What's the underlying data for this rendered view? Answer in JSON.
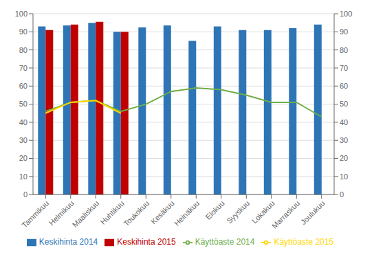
{
  "chart_data": {
    "type": "bar",
    "categories": [
      "Tammikuu",
      "Helmikuu",
      "Maaliskuu",
      "Huhtikuu",
      "Toukokuu",
      "Kesäkuu",
      "Heinäkuu",
      "Elokuu",
      "Syyskuu",
      "Lokakuu",
      "Marraskuu",
      "Joulukuu"
    ],
    "series": [
      {
        "name": "Keskihinta 2014",
        "type": "bar",
        "color": "#2E75B6",
        "values": [
          93,
          93.5,
          95,
          90,
          92.5,
          93.5,
          85,
          93,
          91,
          91,
          92,
          94
        ]
      },
      {
        "name": "Keskihinta 2015",
        "type": "bar",
        "color": "#C00000",
        "values": [
          91,
          94,
          95.5,
          90,
          null,
          null,
          null,
          null,
          null,
          null,
          null,
          null
        ]
      },
      {
        "name": "Käyttöaste 2014",
        "type": "line",
        "color": "#70AD47",
        "axis": "y2",
        "values": [
          46,
          51,
          52,
          46,
          50,
          57,
          59,
          58,
          55,
          51,
          51,
          43
        ]
      },
      {
        "name": "Käyttöaste 2015",
        "type": "line",
        "color": "#FFD700",
        "axis": "y2",
        "values": [
          45,
          51,
          52,
          45,
          null,
          null,
          null,
          null,
          null,
          null,
          null,
          null
        ]
      }
    ],
    "ylim": [
      0,
      100
    ],
    "yticks": [
      0,
      10,
      20,
      30,
      40,
      50,
      60,
      70,
      80,
      90,
      100
    ],
    "y2lim": [
      0,
      100
    ],
    "y2ticks": [
      0,
      10,
      20,
      30,
      40,
      50,
      60,
      70,
      80,
      90,
      100
    ],
    "grid": true,
    "legend": "bottom"
  }
}
